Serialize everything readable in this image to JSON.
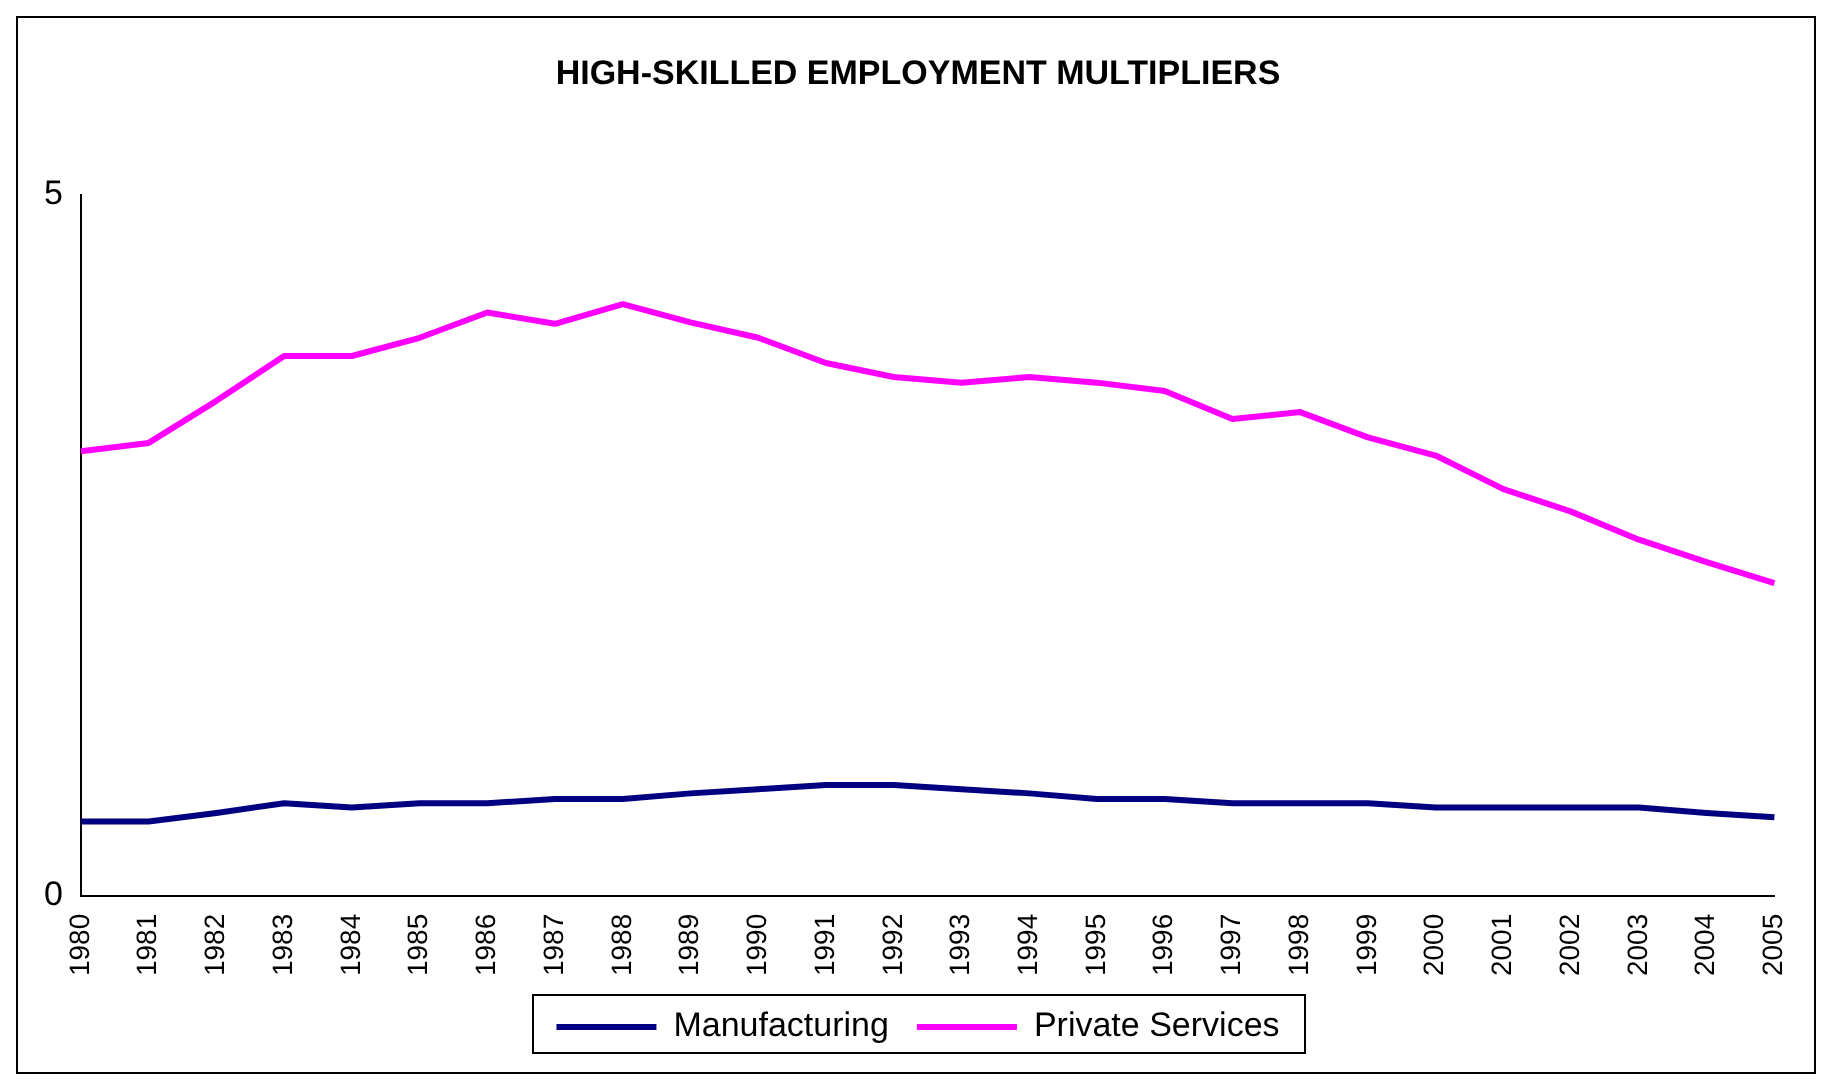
{
  "chart_data": {
    "type": "line",
    "title": "HIGH-SKILLED EMPLOYMENT MULTIPLIERS",
    "categories": [
      "1980",
      "1981",
      "1982",
      "1983",
      "1984",
      "1985",
      "1986",
      "1987",
      "1988",
      "1989",
      "1990",
      "1991",
      "1992",
      "1993",
      "1994",
      "1995",
      "1996",
      "1997",
      "1998",
      "1999",
      "2000",
      "2001",
      "2002",
      "2003",
      "2004",
      "2005"
    ],
    "series": [
      {
        "name": "Manufacturing",
        "color": "#000080",
        "values": [
          0.53,
          0.53,
          0.59,
          0.66,
          0.63,
          0.66,
          0.66,
          0.69,
          0.69,
          0.73,
          0.76,
          0.79,
          0.79,
          0.76,
          0.73,
          0.69,
          0.69,
          0.66,
          0.66,
          0.66,
          0.63,
          0.63,
          0.63,
          0.63,
          0.59,
          0.56
        ]
      },
      {
        "name": "Private Services",
        "color": "#ff00ff",
        "values": [
          3.17,
          3.23,
          3.53,
          3.85,
          3.85,
          3.98,
          4.16,
          4.08,
          4.22,
          4.09,
          3.98,
          3.8,
          3.7,
          3.66,
          3.7,
          3.66,
          3.6,
          3.4,
          3.45,
          3.27,
          3.14,
          2.9,
          2.74,
          2.54,
          2.38,
          2.23
        ]
      }
    ],
    "ylim": [
      0,
      5
    ],
    "yticks": [
      0,
      5
    ],
    "grid": false,
    "legend": "bottom",
    "marker": "none",
    "line_style": "solid"
  }
}
